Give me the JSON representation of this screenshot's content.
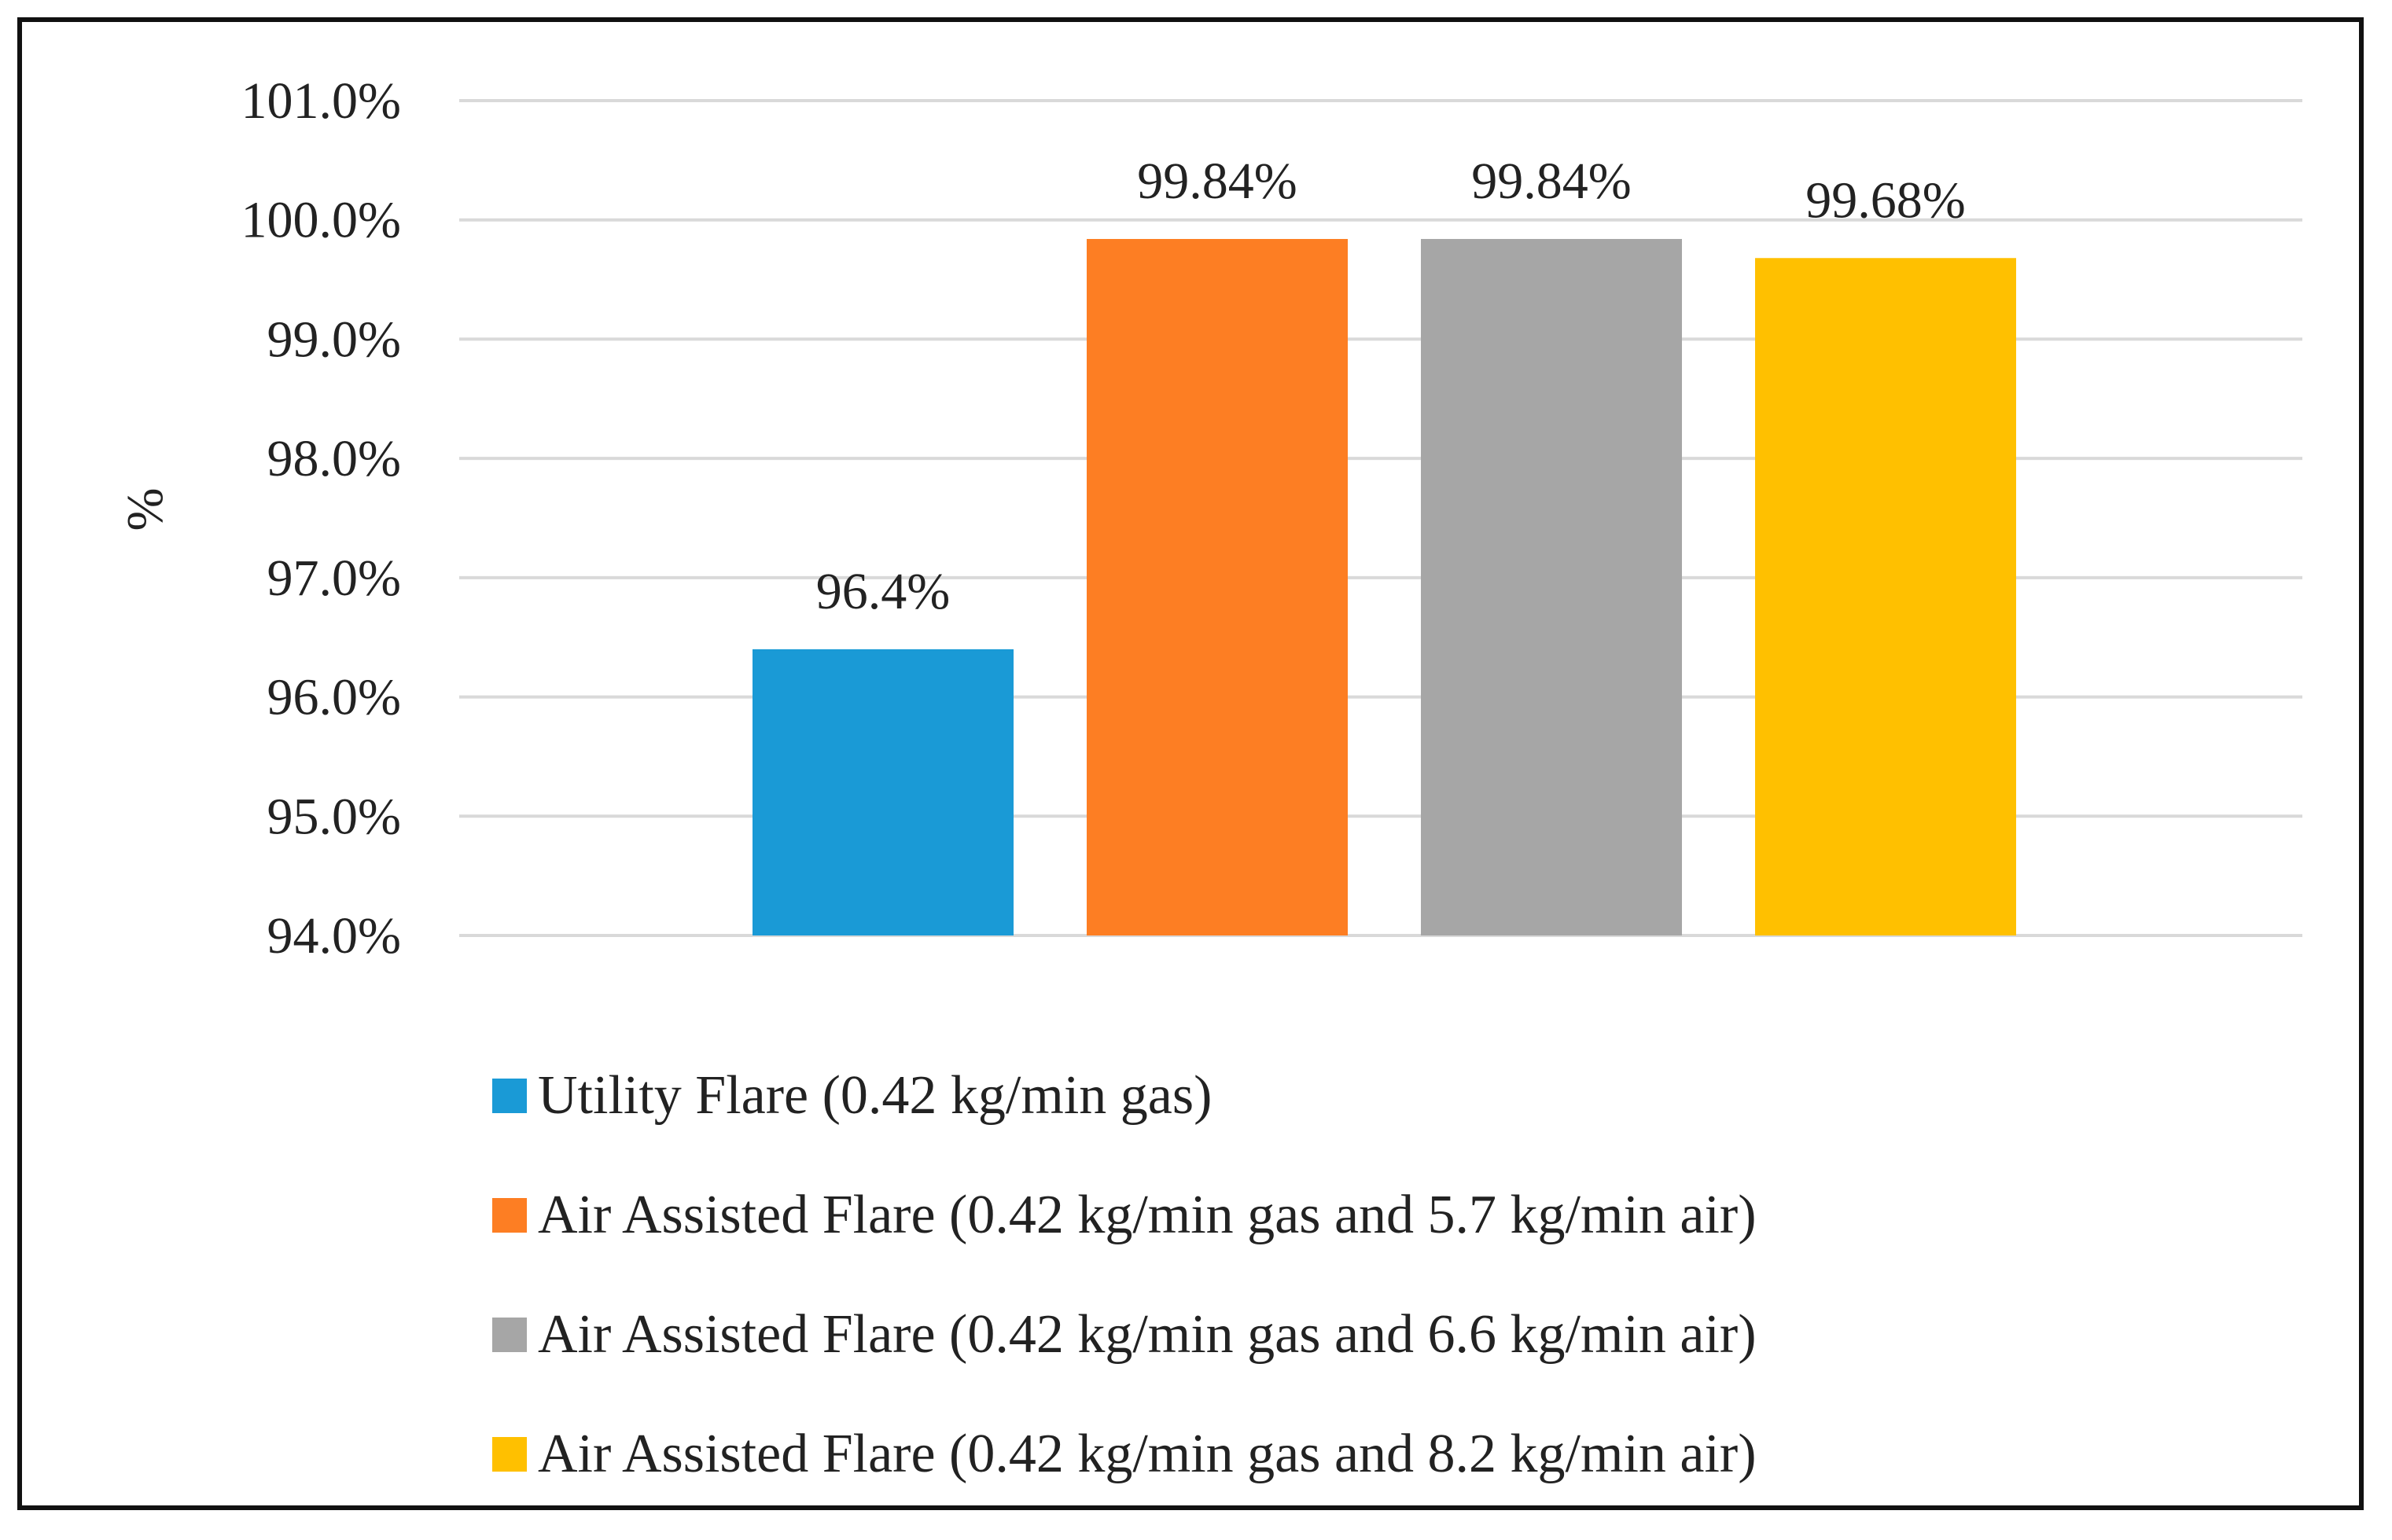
{
  "chart_data": {
    "type": "bar",
    "title": "",
    "xlabel": "",
    "ylabel": "%",
    "ylim": [
      94.0,
      101.0
    ],
    "yticks": [
      "94.0%",
      "95.0%",
      "96.0%",
      "97.0%",
      "98.0%",
      "99.0%",
      "100.0%",
      "101.0%"
    ],
    "ytick_values": [
      94,
      95,
      96,
      97,
      98,
      99,
      100,
      101
    ],
    "grid": true,
    "legend_position": "bottom",
    "series": [
      {
        "name": "Utility Flare (0.42 kg/min gas)",
        "value": 96.4,
        "label": "96.4%",
        "color": "#1a9ad6"
      },
      {
        "name": "Air Assisted Flare (0.42 kg/min gas and 5.7 kg/min air)",
        "value": 99.84,
        "label": "99.84%",
        "color": "#fd7e23"
      },
      {
        "name": "Air Assisted Flare (0.42 kg/min gas and 6.6 kg/min air)",
        "value": 99.84,
        "label": "99.84%",
        "color": "#a6a6a6"
      },
      {
        "name": "Air Assisted Flare (0.42 kg/min gas and 8.2 kg/min air)",
        "value": 99.68,
        "label": "99.68%",
        "color": "#ffc000"
      }
    ]
  }
}
